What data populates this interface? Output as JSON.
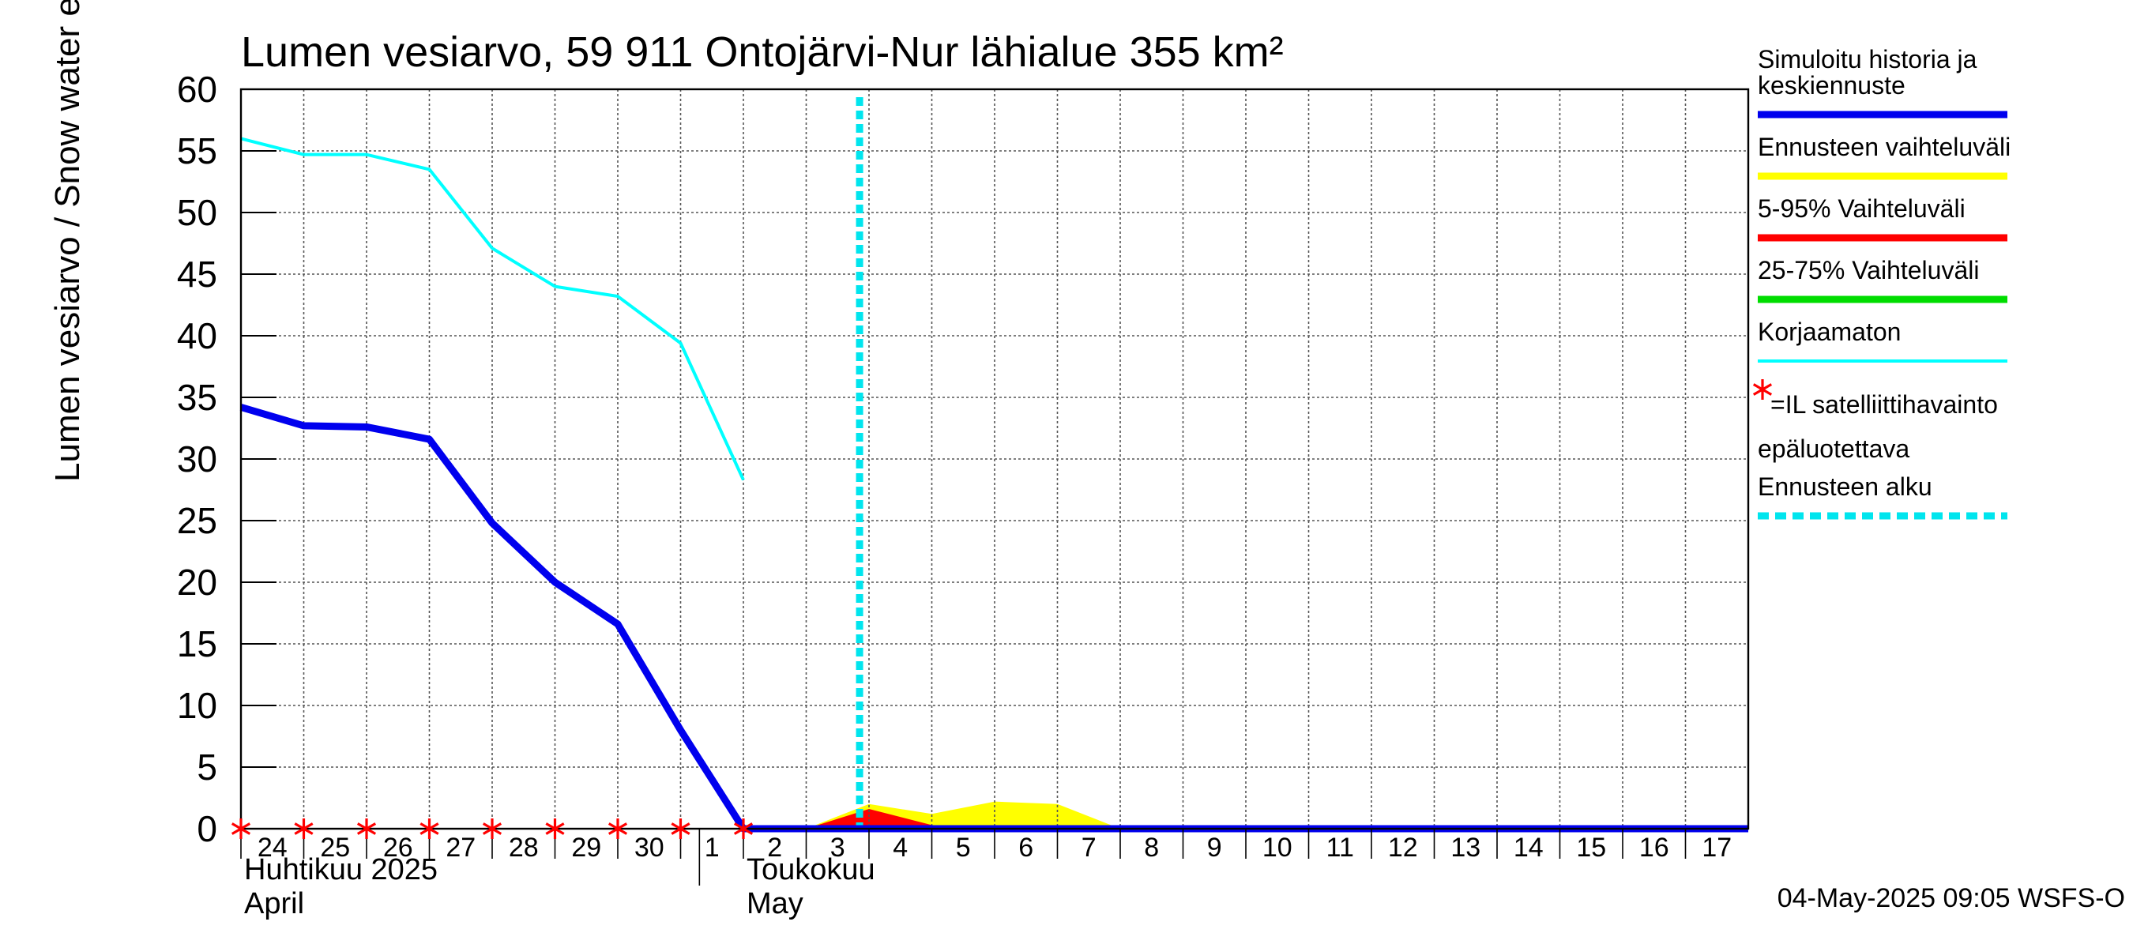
{
  "chart_data": {
    "type": "line",
    "title": "Lumen vesiarvo, 59 911 Ontojärvi-Nur lähialue 355 km²",
    "ylabel": "Lumen vesiarvo / Snow water equiv.    mm",
    "ylim": [
      0,
      60
    ],
    "yticks": [
      "0",
      "5",
      "10",
      "15",
      "20",
      "25",
      "30",
      "35",
      "40",
      "45",
      "50",
      "55",
      "60"
    ],
    "x_range": [
      "2025-04-24",
      "2025-05-18"
    ],
    "x_day_labels": [
      "24",
      "25",
      "26",
      "27",
      "28",
      "29",
      "30",
      "1",
      "2",
      "3",
      "4",
      "5",
      "6",
      "7",
      "8",
      "9",
      "10",
      "11",
      "12",
      "13",
      "14",
      "15",
      "16",
      "17"
    ],
    "x_day_dates": [
      "2025-04-24",
      "2025-04-25",
      "2025-04-26",
      "2025-04-27",
      "2025-04-28",
      "2025-04-29",
      "2025-04-30",
      "2025-05-01",
      "2025-05-02",
      "2025-05-03",
      "2025-05-04",
      "2025-05-05",
      "2025-05-06",
      "2025-05-07",
      "2025-05-08",
      "2025-05-09",
      "2025-05-10",
      "2025-05-11",
      "2025-05-12",
      "2025-05-13",
      "2025-05-14",
      "2025-05-15",
      "2025-05-16",
      "2025-05-17"
    ],
    "month_labels": [
      {
        "fi": "Huhtikuu  2025",
        "en": "April",
        "date": "2025-04-24"
      },
      {
        "fi": "Toukokuu",
        "en": "May",
        "date": "2025-05-02"
      }
    ],
    "grid": true,
    "legend_position": "right",
    "forecast_start": "2025-05-04",
    "series": [
      {
        "name": "Simuloitu historia ja keskiennuste",
        "color": "#0000ee",
        "x": [
          "2025-04-24",
          "2025-04-25",
          "2025-04-26",
          "2025-04-27",
          "2025-04-28",
          "2025-04-29",
          "2025-04-30",
          "2025-05-01",
          "2025-05-02",
          "2025-05-18"
        ],
        "y": [
          34.2,
          32.7,
          32.6,
          31.6,
          24.8,
          20.0,
          16.6,
          8.0,
          0.0,
          0.0
        ]
      },
      {
        "name": "Korjaamaton",
        "color": "#00ffff",
        "x": [
          "2025-04-24",
          "2025-04-25",
          "2025-04-26",
          "2025-04-27",
          "2025-04-28",
          "2025-04-29",
          "2025-04-30",
          "2025-05-01",
          "2025-05-02"
        ],
        "y": [
          56.0,
          54.7,
          54.7,
          53.5,
          47.1,
          44.0,
          43.2,
          39.4,
          28.3
        ]
      },
      {
        "name": "Ennusteen vaihteluväli",
        "color": "#ffff00",
        "band": true,
        "x": [
          "2025-05-03",
          "2025-05-04",
          "2025-05-05",
          "2025-05-06",
          "2025-05-07",
          "2025-05-08"
        ],
        "y": [
          0.0,
          2.0,
          1.2,
          2.2,
          2.0,
          0.0
        ]
      },
      {
        "name": "5-95% Vaihteluväli",
        "color": "#ff0000",
        "band": true,
        "x": [
          "2025-05-03",
          "2025-05-04",
          "2025-05-05",
          "2025-05-06"
        ],
        "y": [
          0.0,
          1.6,
          0.3,
          0.0
        ]
      },
      {
        "name": "25-75% Vaihteluväli",
        "color": "#00dd00",
        "band": true,
        "x": [],
        "y": []
      }
    ],
    "satellite_observations": {
      "marker_color": "#ff0000",
      "x": [
        "2025-04-24",
        "2025-04-25",
        "2025-04-26",
        "2025-04-27",
        "2025-04-28",
        "2025-04-29",
        "2025-04-30",
        "2025-05-01",
        "2025-05-02"
      ],
      "y": [
        0,
        0,
        0,
        0,
        0,
        0,
        0,
        0,
        0
      ]
    },
    "legend": [
      {
        "lines": [
          "Simuloitu historia ja",
          "keskiennuste"
        ],
        "color": "#0000ee",
        "style": "thick"
      },
      {
        "lines": [
          "Ennusteen vaihteluväli"
        ],
        "color": "#ffff00",
        "style": "thick"
      },
      {
        "lines": [
          "5-95% Vaihteluväli"
        ],
        "color": "#ff0000",
        "style": "thick"
      },
      {
        "lines": [
          "25-75% Vaihteluväli"
        ],
        "color": "#00dd00",
        "style": "thick"
      },
      {
        "lines": [
          "Korjaamaton"
        ],
        "color": "#00ffff",
        "style": "thin"
      },
      {
        "lines": [
          "=IL satelliittihavainto",
          "epäluotettava"
        ],
        "color": "#ff0000",
        "style": "star"
      },
      {
        "lines": [
          "Ennusteen alku"
        ],
        "color": "#00e5ee",
        "style": "dashed"
      }
    ],
    "footer": "04-May-2025 09:05 WSFS-O"
  }
}
